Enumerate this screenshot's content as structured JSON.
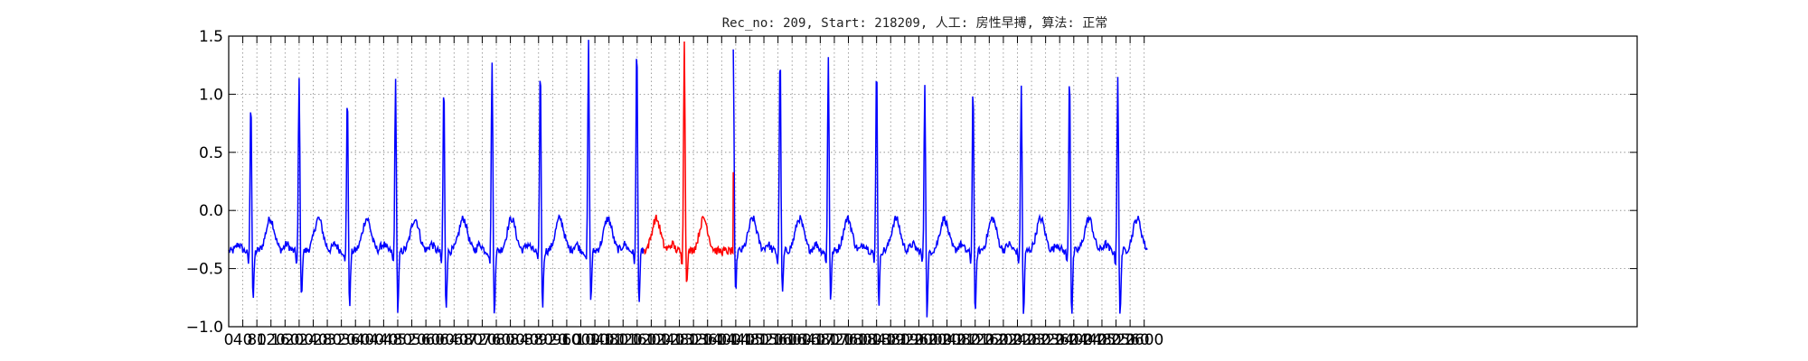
{
  "chart_data": {
    "type": "line",
    "title": "Rec_no: 209, Start: 218209, 人工: 房性早搏, 算法: 正常",
    "xlabel": "",
    "ylabel": "",
    "xlim": [
      0,
      4000
    ],
    "ylim": [
      -1.0,
      1.5
    ],
    "grid": true,
    "yticks": [
      -1.0,
      -0.5,
      0.0,
      0.5,
      1.0,
      1.5
    ],
    "ytick_labels": [
      "−1.0",
      "−0.5",
      "0.0",
      "0.5",
      "1.0",
      "1.5"
    ],
    "xticks": [
      0,
      40,
      80,
      120,
      160,
      200,
      240,
      280,
      320,
      360,
      400,
      440,
      480,
      520,
      560,
      600,
      640,
      680,
      720,
      760,
      800,
      840,
      880,
      920,
      960,
      1000,
      1040,
      1080,
      1120,
      1160,
      1200,
      1240,
      1280,
      1320,
      1360,
      1400,
      1440,
      1480,
      1520,
      1560,
      1600,
      1640,
      1680,
      1720,
      1760,
      1800,
      1840,
      1880,
      1920,
      1960,
      2000,
      2040,
      2080,
      2120,
      2160,
      2200,
      2240,
      2280,
      2320,
      2360,
      2400,
      2440,
      2480,
      2520,
      2560,
      2600
    ],
    "xtick_labels": [
      "0",
      "40",
      "80",
      "120",
      "160",
      "200",
      "240",
      "280",
      "320",
      "360",
      "400",
      "440",
      "480",
      "520",
      "560",
      "600",
      "640",
      "680",
      "720",
      "760",
      "800",
      "840",
      "880",
      "920",
      "960",
      "1000",
      "1040",
      "1080",
      "1120",
      "1160",
      "1200",
      "1240",
      "1280",
      "1320",
      "1360",
      "1400",
      "1440",
      "1480",
      "1520",
      "1560",
      "1600",
      "1640",
      "1680",
      "1720",
      "1760",
      "1800",
      "1840",
      "1880",
      "1920",
      "1960",
      "2000",
      "2040",
      "2080",
      "2120",
      "2160",
      "2200",
      "2240",
      "2280",
      "2320",
      "2360",
      "2400",
      "2440",
      "2480",
      "2520",
      "2560",
      "2600"
    ],
    "series": [
      {
        "color": "#0000ff",
        "baseline": -0.35,
        "beats": [
          {
            "x": 63,
            "peak": 1.03,
            "trough": -0.83
          },
          {
            "x": 200,
            "peak": 1.17,
            "trough": -0.81
          },
          {
            "x": 337,
            "peak": 1.07,
            "trough": -0.88
          },
          {
            "x": 474,
            "peak": 1.16,
            "trough": -0.95
          },
          {
            "x": 611,
            "peak": 1.15,
            "trough": -0.91
          },
          {
            "x": 748,
            "peak": 1.35,
            "trough": -0.97
          },
          {
            "x": 885,
            "peak": 1.3,
            "trough": -0.9
          },
          {
            "x": 1022,
            "peak": 1.48,
            "trough": -0.85
          },
          {
            "x": 1159,
            "peak": 1.49,
            "trough": -0.86
          },
          {
            "x": 1433,
            "peak": 1.42,
            "trough": -0.76
          },
          {
            "x": 1566,
            "peak": 1.42,
            "trough": -0.79
          },
          {
            "x": 1703,
            "peak": 1.35,
            "trough": -0.83
          },
          {
            "x": 1840,
            "peak": 1.33,
            "trough": -0.88
          },
          {
            "x": 1977,
            "peak": 1.15,
            "trough": -0.98
          },
          {
            "x": 2114,
            "peak": 1.15,
            "trough": -0.98
          },
          {
            "x": 2251,
            "peak": 1.13,
            "trough": -0.98
          },
          {
            "x": 2388,
            "peak": 1.26,
            "trough": -0.98
          },
          {
            "x": 2525,
            "peak": 1.21,
            "trough": -1.0
          }
        ],
        "end_x": 2610
      },
      {
        "color": "#ff0000",
        "segment": [
          1180,
          1433
        ],
        "beats": [
          {
            "x": 1294,
            "peak": 1.46,
            "trough": -0.66
          }
        ],
        "end_value": 0.33
      }
    ]
  }
}
